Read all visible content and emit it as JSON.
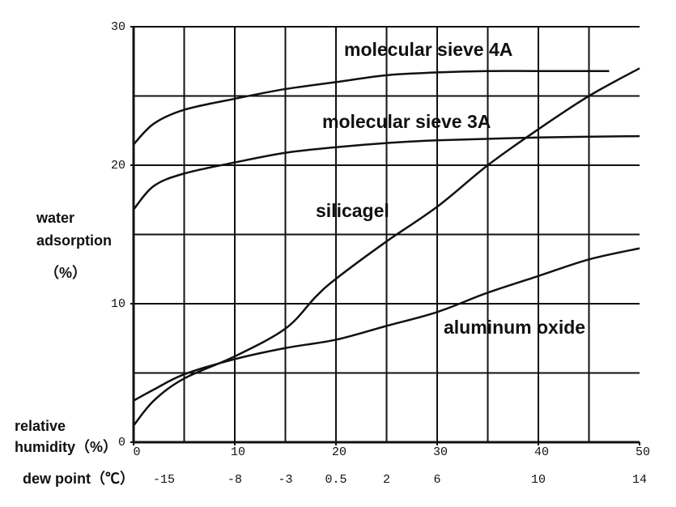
{
  "chart_data": {
    "type": "line",
    "ylabel": [
      "water",
      "adsorption",
      "（%）"
    ],
    "xlabel": [
      "relative",
      "humidity（%）"
    ],
    "x2label": "dew point（℃）",
    "xlim": [
      0,
      50
    ],
    "ylim": [
      0,
      30
    ],
    "xticks": [
      0,
      10,
      20,
      30,
      40,
      50
    ],
    "yticks": [
      0,
      10,
      20,
      30
    ],
    "xgrid": [
      5,
      10,
      15,
      20,
      25,
      30,
      35,
      40,
      45
    ],
    "ygrid": [
      5,
      10,
      15,
      20,
      25
    ],
    "x2ticks": [
      {
        "value": 3,
        "label": "-15"
      },
      {
        "value": 10,
        "label": "-8"
      },
      {
        "value": 15,
        "label": "-3"
      },
      {
        "value": 20,
        "label": "0.5"
      },
      {
        "value": 25,
        "label": "2"
      },
      {
        "value": 30,
        "label": "6"
      },
      {
        "value": 40,
        "label": "10"
      },
      {
        "value": 50,
        "label": "14"
      }
    ],
    "grid": true,
    "series": [
      {
        "name": "molecular sieve 4A",
        "color": "#111111",
        "x": [
          0,
          2,
          5,
          10,
          15,
          20,
          25,
          30,
          35,
          40,
          47
        ],
        "values": [
          21.5,
          23,
          24,
          24.8,
          25.5,
          26,
          26.5,
          26.7,
          26.8,
          26.8,
          26.8
        ]
      },
      {
        "name": "molecular sieve 3A",
        "color": "#111111",
        "x": [
          0,
          2,
          5,
          10,
          15,
          20,
          25,
          30,
          40,
          50
        ],
        "values": [
          16.8,
          18.5,
          19.4,
          20.2,
          20.9,
          21.3,
          21.6,
          21.8,
          22,
          22.1
        ]
      },
      {
        "name": "silicagel",
        "color": "#111111",
        "x": [
          0,
          2,
          5,
          10,
          15,
          18,
          20,
          25,
          30,
          35,
          40,
          45,
          50
        ],
        "values": [
          1.2,
          3,
          4.6,
          6.2,
          8.2,
          10.5,
          11.8,
          14.5,
          17,
          20,
          22.6,
          25,
          27
        ]
      },
      {
        "name": "aluminum oxide",
        "color": "#111111",
        "x": [
          0,
          2,
          5,
          10,
          15,
          20,
          25,
          30,
          35,
          40,
          45,
          50
        ],
        "values": [
          3,
          3.8,
          4.9,
          6,
          6.8,
          7.4,
          8.4,
          9.4,
          10.8,
          12,
          13.2,
          14
        ]
      }
    ]
  }
}
